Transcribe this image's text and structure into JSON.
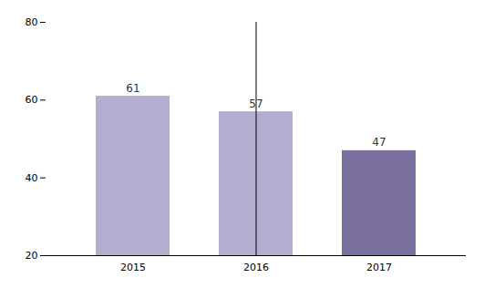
{
  "chart_data": {
    "type": "bar",
    "categories": [
      "2015",
      "2016",
      "2017"
    ],
    "values": [
      61,
      57,
      47
    ],
    "colors": [
      "#b3aed0",
      "#b3aed0",
      "#7b6fa0"
    ],
    "ylim": [
      20,
      80
    ],
    "yticks": [
      20,
      40,
      60,
      80
    ],
    "grid": false,
    "data_labels": true
  }
}
